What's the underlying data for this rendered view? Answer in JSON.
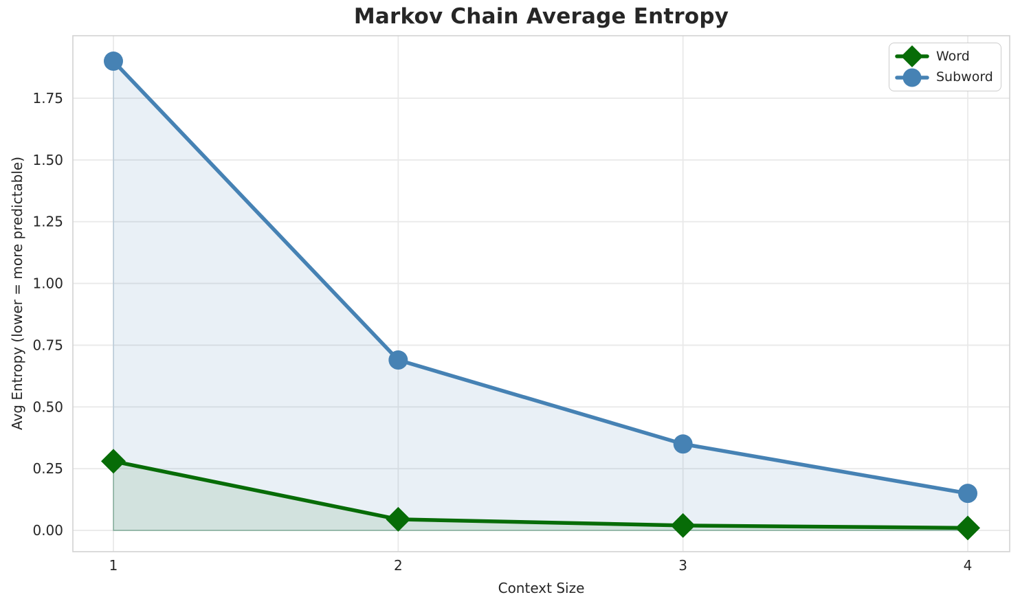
{
  "chart_data": {
    "type": "line",
    "title": "Markov Chain Average Entropy",
    "xlabel": "Context Size",
    "ylabel": "Avg Entropy (lower = more predictable)",
    "x": [
      1,
      2,
      3,
      4
    ],
    "series": [
      {
        "name": "Word",
        "values": [
          0.28,
          0.045,
          0.02,
          0.01
        ],
        "color": "#076c07",
        "marker": "diamond",
        "fill_color": "rgba(7,108,7,0.10)",
        "fill_edge_color": "rgba(7,108,7,0.25)"
      },
      {
        "name": "Subword",
        "values": [
          1.9,
          0.69,
          0.35,
          0.15
        ],
        "color": "#4682b4",
        "marker": "circle",
        "fill_color": "rgba(70,130,180,0.12)",
        "fill_edge_color": "rgba(70,130,180,0.25)"
      }
    ],
    "xtick_labels": [
      "1",
      "2",
      "3",
      "4"
    ],
    "xtick_values": [
      1,
      2,
      3,
      4
    ],
    "ytick_labels": [
      "0.00",
      "0.25",
      "0.50",
      "0.75",
      "1.00",
      "1.25",
      "1.50",
      "1.75"
    ],
    "ytick_values": [
      0,
      0.25,
      0.5,
      0.75,
      1.0,
      1.25,
      1.5,
      1.75
    ],
    "xlim": [
      0.8576,
      4.1472
    ],
    "ylim": [
      -0.086,
      2.003
    ],
    "grid": true,
    "fill_baseline": 0,
    "legend_position": "upper right",
    "legend_entries": [
      "Word",
      "Subword"
    ]
  },
  "style": {
    "background_color": "#ffffff",
    "text_color": "#262626",
    "grid_color": "#e9e9e9",
    "frame_color": "#d2d2d2",
    "legend_border_color": "#cccccc"
  }
}
